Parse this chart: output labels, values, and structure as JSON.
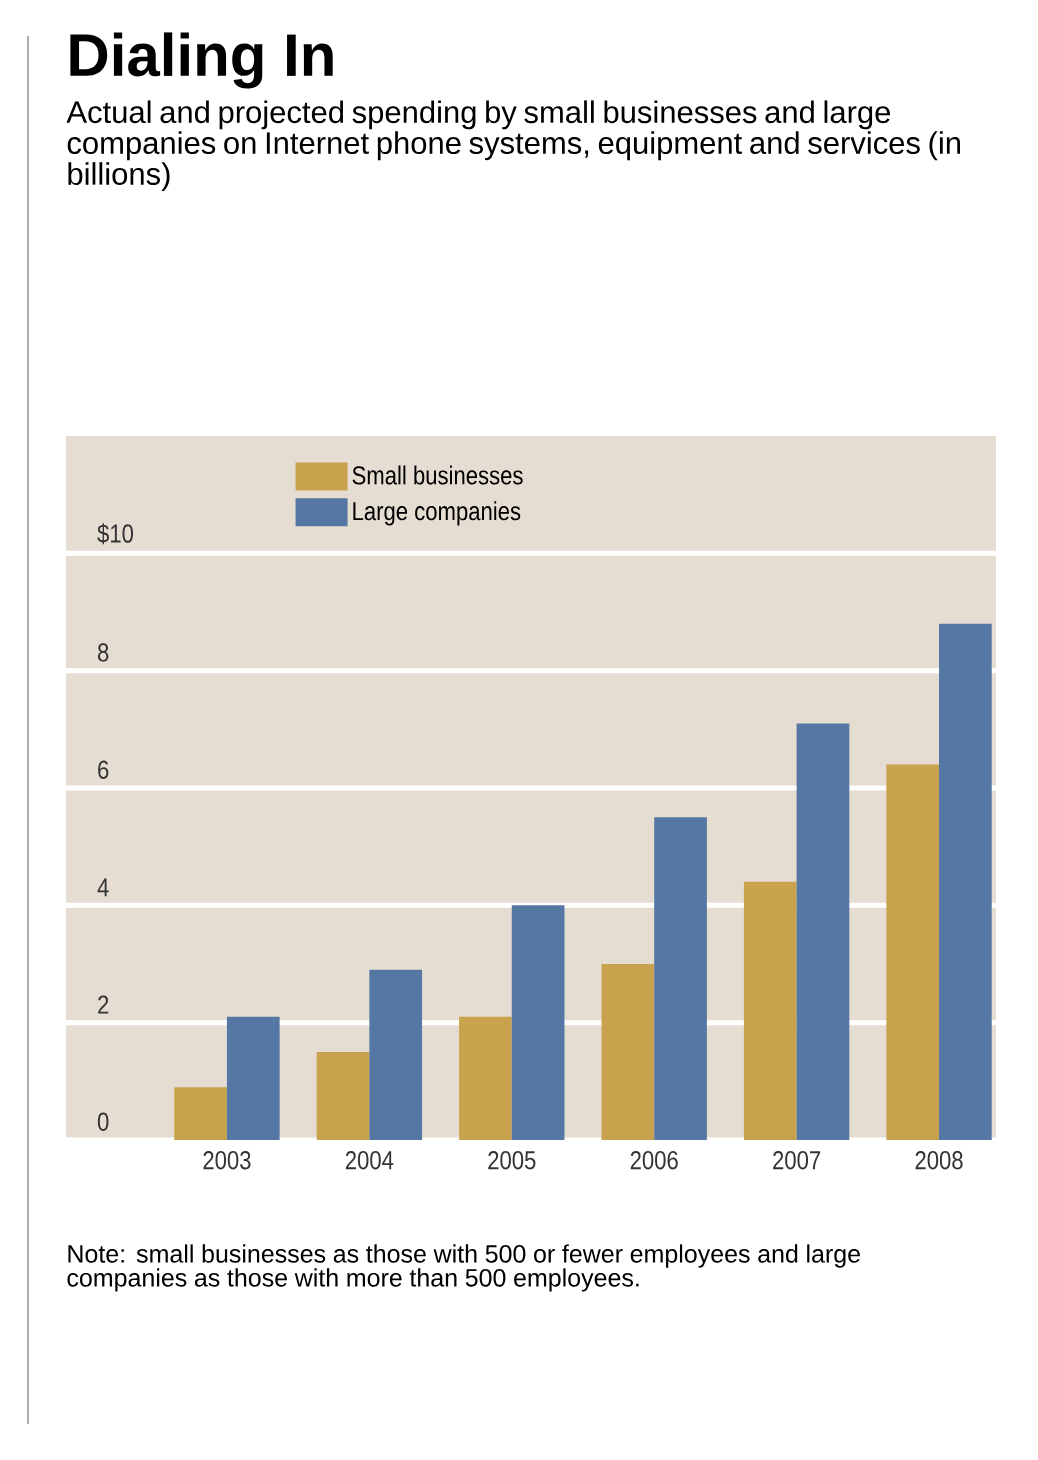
{
  "chart_data": {
    "type": "bar",
    "title": "Dialing In",
    "subtitle": "Actual and projected spending by small businesses and large companies on Internet phone systems, equipment and services (in billions)",
    "categories": [
      "2003",
      "2004",
      "2005",
      "2006",
      "2007",
      "2008"
    ],
    "series": [
      {
        "name": "Small businesses",
        "color": "#c9a24e",
        "values": [
          0.9,
          1.5,
          2.1,
          3.0,
          4.4,
          6.4
        ]
      },
      {
        "name": "Large companies",
        "color": "#5577a3",
        "values": [
          2.1,
          2.9,
          4.0,
          5.5,
          7.1,
          8.8
        ]
      }
    ],
    "ylim": [
      0,
      12
    ],
    "yticks": [
      0,
      2,
      4,
      6,
      8,
      {
        "value": 10,
        "label": "$10"
      }
    ],
    "grid": "y",
    "legend": "top left",
    "annotations": [
      "Note: small businesses as those with 500 or fewer employees and large companies as those with more than 500 employees."
    ]
  }
}
